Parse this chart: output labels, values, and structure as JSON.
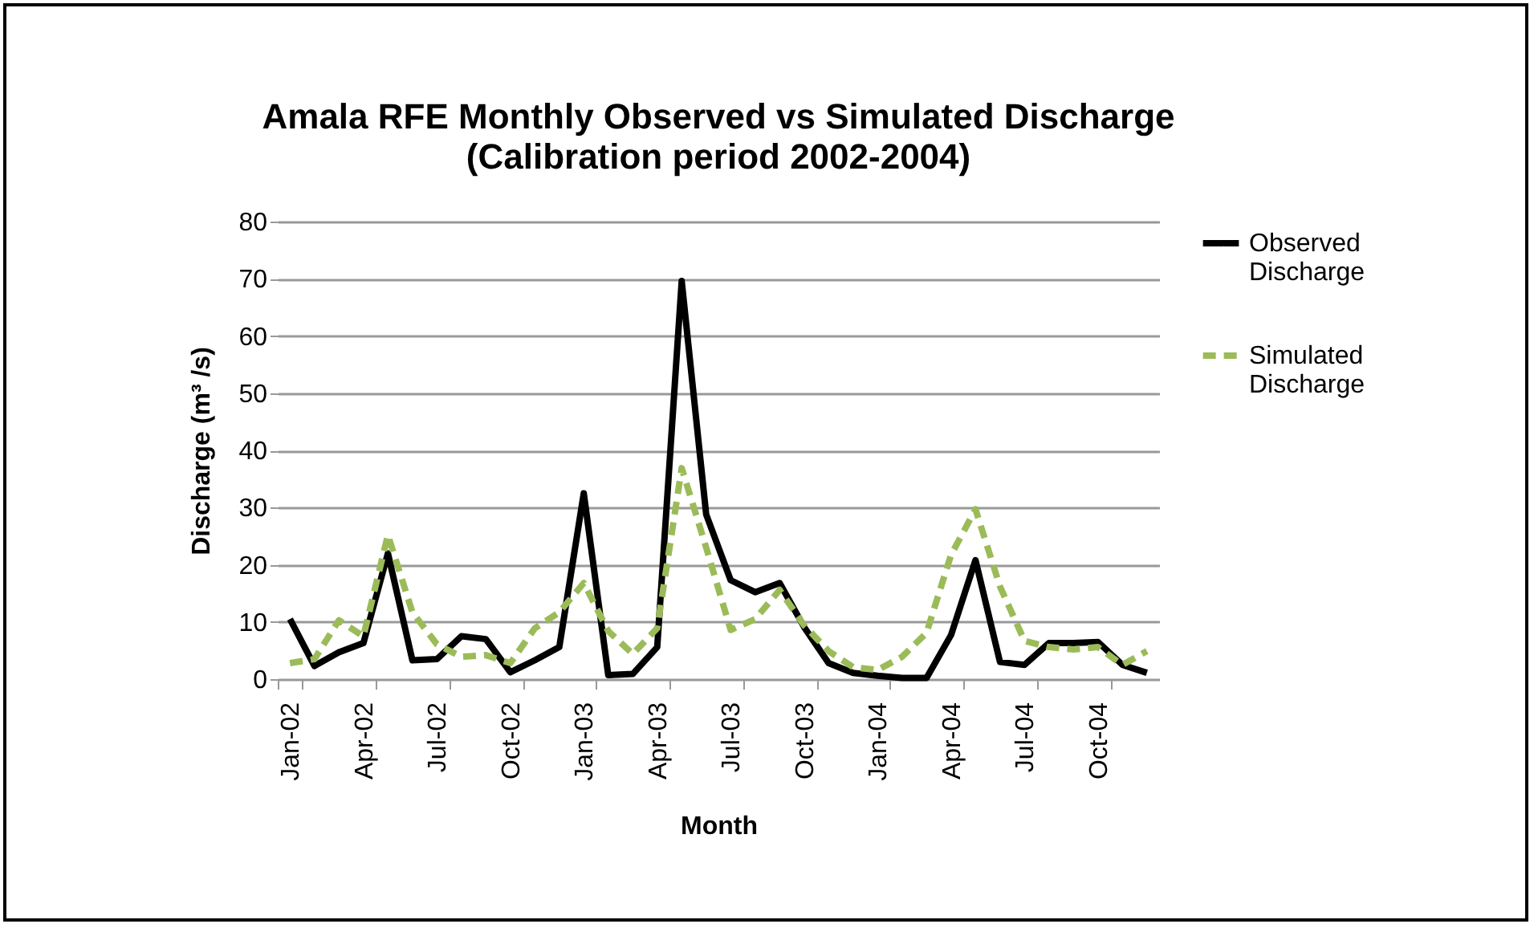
{
  "chart_data": {
    "type": "line",
    "title": "Amala RFE Monthly Observed vs Simulated Discharge",
    "subtitle": "(Calibration period 2002-2004)",
    "xlabel": "Month",
    "ylabel": "Discharge (m³ /s)",
    "categories": [
      "Jan-02",
      null,
      null,
      "Apr-02",
      null,
      null,
      "Jul-02",
      null,
      null,
      "Oct-02",
      null,
      null,
      "Jan-03",
      null,
      null,
      "Apr-03",
      null,
      null,
      "Jul-03",
      null,
      null,
      "Oct-03",
      null,
      null,
      "Jan-04",
      null,
      null,
      "Apr-04",
      null,
      null,
      "Jul-04",
      null,
      null,
      "Oct-04",
      null,
      null
    ],
    "series": [
      {
        "name": "Observed Discharge",
        "color": "#000000",
        "line_style": "solid",
        "values": [
          10.5,
          2.3,
          4.7,
          6.3,
          22,
          3.3,
          3.5,
          7.5,
          7.0,
          1.2,
          3.3,
          5.6,
          32.5,
          0.7,
          0.9,
          5.6,
          69.6,
          28.8,
          17.3,
          15.2,
          16.8,
          9.1,
          2.8,
          1.1,
          0.6,
          0.2,
          0.2,
          7.7,
          20.8,
          3.0,
          2.5,
          6.3,
          6.3,
          6.5,
          2.5,
          1.1
        ]
      },
      {
        "name": "Simulated Discharge",
        "color": "#9bbb59",
        "line_style": "dashed",
        "values": [
          2.8,
          3.5,
          10.3,
          7.5,
          25.2,
          11.7,
          6.1,
          3.9,
          4.2,
          2.8,
          8.9,
          11.7,
          16.8,
          8.4,
          4.4,
          8.9,
          36.9,
          23,
          8.6,
          10.5,
          15.6,
          9.4,
          4.9,
          2.1,
          1.6,
          3.9,
          8.1,
          21.7,
          29.7,
          16.2,
          6.7,
          5.6,
          5.2,
          5.6,
          2.5,
          4.9
        ]
      }
    ],
    "ylim": [
      0,
      80
    ],
    "yticks": [
      0,
      10,
      20,
      30,
      40,
      50,
      60,
      70,
      80
    ],
    "grid": "y",
    "legend": "right",
    "marker": "none"
  }
}
